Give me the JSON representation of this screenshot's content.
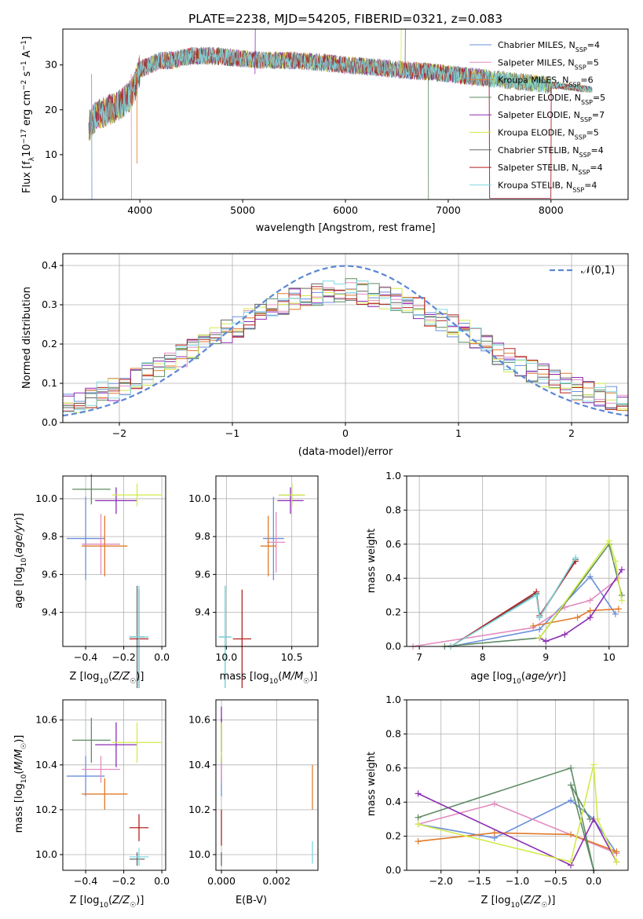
{
  "chart_data": [
    {
      "type": "line",
      "title": "PLATE=2238, MJD=54205, FIBERID=0321, z=0.083",
      "xlabel": "wavelength [Angstrom, rest frame]",
      "ylabel": "Flux [f_λ 10^-17 erg cm^-2 s^-1 A^-1]",
      "xlim": [
        3250,
        8750
      ],
      "ylim": [
        0,
        38
      ],
      "xticks": [
        "4000",
        "5000",
        "6000",
        "7000",
        "8000"
      ],
      "yticks": [
        "0",
        "10",
        "20",
        "30"
      ],
      "grid": false,
      "legend_position": "top-right",
      "continuum": {
        "x": [
          3500,
          3550,
          3600,
          3700,
          3800,
          3900,
          3950,
          4000,
          4100,
          4200,
          4300,
          4500,
          4700,
          5000,
          5200,
          5500,
          5800,
          6000,
          6300,
          6500,
          6800,
          7000,
          7200,
          7400,
          7600,
          7800,
          8000,
          8200,
          8400
        ],
        "y": [
          16,
          18,
          19,
          20,
          21,
          23,
          25,
          29,
          30,
          31,
          31,
          32,
          32,
          31.5,
          31,
          31,
          30.5,
          30,
          29.5,
          29,
          28.5,
          28,
          27.5,
          27,
          26.5,
          26,
          25.5,
          25,
          24.5
        ]
      },
      "series": [
        {
          "name": "Chabrier MILES, N_SSP=4",
          "color": "#6b8fdb"
        },
        {
          "name": "Salpeter MILES, N_SSP=5",
          "color": "#e38cbf"
        },
        {
          "name": "Kroupa MILES, N_SSP=6",
          "color": "#e07b2a"
        },
        {
          "name": "Chabrier ELODIE, N_SSP=5",
          "color": "#5e8c63"
        },
        {
          "name": "Salpeter ELODIE, N_SSP=7",
          "color": "#8c2cb3"
        },
        {
          "name": "Kroupa ELODIE, N_SSP=5",
          "color": "#d3ea4a"
        },
        {
          "name": "Chabrier STELIB, N_SSP=4",
          "color": "#666666"
        },
        {
          "name": "Salpeter STELIB, N_SSP=4",
          "color": "#b22222"
        },
        {
          "name": "Kroupa STELIB, N_SSP=4",
          "color": "#7fd8e0"
        }
      ]
    },
    {
      "type": "histogram",
      "xlabel": "(data-model)/error",
      "ylabel": "Normed distribution",
      "xlim": [
        -2.5,
        2.5
      ],
      "ylim": [
        0,
        0.43
      ],
      "xticks": [
        "−2",
        "−1",
        "0",
        "1",
        "2"
      ],
      "yticks": [
        "0.0",
        "0.1",
        "0.2",
        "0.3",
        "0.4"
      ],
      "grid": true,
      "legend_position": "top-right",
      "reference_curve": {
        "name": "𝒩(0,1)",
        "style": "dashed",
        "color": "#5b87d6"
      },
      "bin_width": 0.1,
      "profile": {
        "x": [
          -2.5,
          -2.0,
          -1.5,
          -1.0,
          -0.5,
          0.0,
          0.5,
          1.0,
          1.5,
          2.0,
          2.5
        ],
        "y": [
          0.04,
          0.09,
          0.16,
          0.24,
          0.31,
          0.34,
          0.31,
          0.24,
          0.15,
          0.09,
          0.05
        ]
      }
    },
    {
      "type": "scatter",
      "name": "age vs metallicity",
      "xlabel": "Z [log10(Z/Z☉)]",
      "ylabel": "age [log10(age/yr)]",
      "xlim": [
        -0.52,
        0.02
      ],
      "ylim": [
        9.22,
        10.12
      ],
      "xticks": [
        "−0.4",
        "−0.2",
        "0.0"
      ],
      "yticks": [
        "9.4",
        "9.6",
        "9.8",
        "10.0"
      ],
      "grid": true,
      "points": [
        {
          "x": -0.4,
          "y": 9.79,
          "xerr": 0.1,
          "yerr": 0.22,
          "color": "#6b8fdb"
        },
        {
          "x": -0.32,
          "y": 9.76,
          "xerr": 0.1,
          "yerr": 0.16,
          "color": "#e38cbf"
        },
        {
          "x": -0.3,
          "y": 9.75,
          "xerr": 0.12,
          "yerr": 0.16,
          "color": "#e07b2a"
        },
        {
          "x": -0.37,
          "y": 10.05,
          "xerr": 0.1,
          "yerr": 0.08,
          "color": "#5e8c63"
        },
        {
          "x": -0.24,
          "y": 9.99,
          "xerr": 0.11,
          "yerr": 0.07,
          "color": "#8c2cb3"
        },
        {
          "x": -0.13,
          "y": 10.02,
          "xerr": 0.13,
          "yerr": 0.06,
          "color": "#d3ea4a"
        },
        {
          "x": -0.13,
          "y": 9.27,
          "xerr": 0.04,
          "yerr": 0.27,
          "color": "#666666"
        },
        {
          "x": -0.12,
          "y": 9.26,
          "xerr": 0.05,
          "yerr": 0.26,
          "color": "#b22222"
        },
        {
          "x": -0.12,
          "y": 9.27,
          "xerr": 0.05,
          "yerr": 0.27,
          "color": "#7fd8e0"
        }
      ]
    },
    {
      "type": "scatter",
      "name": "age vs mass",
      "xlabel": "mass [log10(M/M☉)]",
      "ylabel": "",
      "xlim": [
        9.92,
        10.7
      ],
      "ylim": [
        9.22,
        10.12
      ],
      "xticks": [
        "10.0",
        "10.5"
      ],
      "yticks": [
        "9.4",
        "9.6",
        "9.8",
        "10.0"
      ],
      "grid": true,
      "points": [
        {
          "x": 10.36,
          "y": 9.79,
          "xerr": 0.08,
          "yerr": 0.22,
          "color": "#6b8fdb"
        },
        {
          "x": 10.38,
          "y": 9.77,
          "xerr": 0.07,
          "yerr": 0.16,
          "color": "#e38cbf"
        },
        {
          "x": 10.32,
          "y": 9.75,
          "xerr": 0.06,
          "yerr": 0.16,
          "color": "#e07b2a"
        },
        {
          "x": 10.5,
          "y": 10.02,
          "xerr": 0.1,
          "yerr": 0.06,
          "color": "#5e8c63"
        },
        {
          "x": 10.49,
          "y": 9.99,
          "xerr": 0.1,
          "yerr": 0.07,
          "color": "#8c2cb3"
        },
        {
          "x": 10.5,
          "y": 10.02,
          "xerr": 0.1,
          "yerr": 0.06,
          "color": "#d3ea4a"
        },
        {
          "x": 9.99,
          "y": 9.27,
          "xerr": 0.04,
          "yerr": 0.27,
          "color": "#666666"
        },
        {
          "x": 10.12,
          "y": 9.26,
          "xerr": 0.07,
          "yerr": 0.26,
          "color": "#b22222"
        },
        {
          "x": 9.99,
          "y": 9.27,
          "xerr": 0.05,
          "yerr": 0.27,
          "color": "#7fd8e0"
        }
      ]
    },
    {
      "type": "line",
      "name": "mass weight vs age",
      "xlabel": "age [log10(age/yr)]",
      "ylabel": "mass weight",
      "xlim": [
        6.8,
        10.3
      ],
      "ylim": [
        0,
        1
      ],
      "xticks": [
        "7",
        "8",
        "9",
        "10"
      ],
      "yticks": [
        "0.0",
        "0.2",
        "0.4",
        "0.6",
        "0.8",
        "1.0"
      ],
      "grid": true,
      "series": [
        {
          "color": "#6b8fdb",
          "x": [
            7.5,
            8.9,
            9.7,
            10.1
          ],
          "y": [
            0.0,
            0.1,
            0.41,
            0.19
          ]
        },
        {
          "color": "#e38cbf",
          "x": [
            6.9,
            8.8,
            9.3,
            9.7,
            10.15
          ],
          "y": [
            0.0,
            0.11,
            0.23,
            0.27,
            0.4
          ]
        },
        {
          "color": "#e07b2a",
          "x": [
            8.8,
            9.5,
            9.7,
            10.15
          ],
          "y": [
            0.12,
            0.17,
            0.21,
            0.22
          ]
        },
        {
          "color": "#5e8c63",
          "x": [
            7.4,
            8.9,
            10.0,
            10.2
          ],
          "y": [
            0.0,
            0.05,
            0.6,
            0.3
          ]
        },
        {
          "color": "#8c2cb3",
          "x": [
            8.9,
            9.0,
            9.3,
            9.7,
            10.2
          ],
          "y": [
            0.05,
            0.03,
            0.07,
            0.17,
            0.45
          ]
        },
        {
          "color": "#d3ea4a",
          "x": [
            8.9,
            10.0,
            10.1,
            10.2
          ],
          "y": [
            0.05,
            0.62,
            0.5,
            0.27
          ]
        },
        {
          "color": "#666666",
          "x": [
            7.5,
            8.85,
            8.9,
            9.47
          ],
          "y": [
            0.0,
            0.31,
            0.17,
            0.51
          ]
        },
        {
          "color": "#b22222",
          "x": [
            7.5,
            8.85,
            8.9,
            9.47
          ],
          "y": [
            0.0,
            0.32,
            0.18,
            0.5
          ]
        },
        {
          "color": "#7fd8e0",
          "x": [
            7.5,
            8.85,
            8.9,
            9.47
          ],
          "y": [
            0.0,
            0.3,
            0.17,
            0.52
          ]
        }
      ]
    },
    {
      "type": "scatter",
      "name": "mass vs metallicity",
      "xlabel": "Z [log10(Z/Z☉)]",
      "ylabel": "mass [log10(M/M☉)]",
      "xlim": [
        -0.52,
        0.02
      ],
      "ylim": [
        9.93,
        10.69
      ],
      "xticks": [
        "−0.4",
        "−0.2",
        "0.0"
      ],
      "yticks": [
        "10.0",
        "10.2",
        "10.4",
        "10.6"
      ],
      "grid": true,
      "points": [
        {
          "x": -0.4,
          "y": 10.35,
          "xerr": 0.1,
          "yerr": 0.09,
          "color": "#6b8fdb"
        },
        {
          "x": -0.32,
          "y": 10.38,
          "xerr": 0.1,
          "yerr": 0.06,
          "color": "#e38cbf"
        },
        {
          "x": -0.3,
          "y": 10.27,
          "xerr": 0.12,
          "yerr": 0.07,
          "color": "#e07b2a"
        },
        {
          "x": -0.37,
          "y": 10.51,
          "xerr": 0.1,
          "yerr": 0.1,
          "color": "#5e8c63"
        },
        {
          "x": -0.24,
          "y": 10.49,
          "xerr": 0.11,
          "yerr": 0.1,
          "color": "#8c2cb3"
        },
        {
          "x": -0.13,
          "y": 10.5,
          "xerr": 0.13,
          "yerr": 0.09,
          "color": "#d3ea4a"
        },
        {
          "x": -0.13,
          "y": 9.98,
          "xerr": 0.04,
          "yerr": 0.03,
          "color": "#666666"
        },
        {
          "x": -0.12,
          "y": 10.12,
          "xerr": 0.05,
          "yerr": 0.06,
          "color": "#b22222"
        },
        {
          "x": -0.12,
          "y": 9.99,
          "xerr": 0.05,
          "yerr": 0.04,
          "color": "#7fd8e0"
        }
      ]
    },
    {
      "type": "scatter",
      "name": "mass vs extinction",
      "xlabel": "E(B-V)",
      "ylabel": "",
      "xlim": [
        -0.0002,
        0.0035
      ],
      "ylim": [
        9.93,
        10.69
      ],
      "xticks": [
        "0.000",
        "0.002"
      ],
      "yticks": [
        "10.0",
        "10.2",
        "10.4",
        "10.6"
      ],
      "grid": true,
      "points": [
        {
          "x": 0.0,
          "y": 10.35,
          "yerr": 0.09,
          "color": "#6b8fdb"
        },
        {
          "x": 0.0,
          "y": 10.38,
          "yerr": 0.06,
          "color": "#e38cbf"
        },
        {
          "x": 0.0033,
          "y": 10.3,
          "yerr": 0.1,
          "color": "#e07b2a"
        },
        {
          "x": 0.0,
          "y": 10.51,
          "yerr": 0.1,
          "color": "#5e8c63"
        },
        {
          "x": 0.0,
          "y": 10.56,
          "yerr": 0.1,
          "color": "#8c2cb3"
        },
        {
          "x": 0.0,
          "y": 10.5,
          "yerr": 0.09,
          "color": "#d3ea4a"
        },
        {
          "x": 0.0,
          "y": 9.98,
          "yerr": 0.03,
          "color": "#666666"
        },
        {
          "x": 0.0,
          "y": 10.12,
          "yerr": 0.08,
          "color": "#b22222"
        },
        {
          "x": 0.0033,
          "y": 10.01,
          "yerr": 0.05,
          "color": "#7fd8e0"
        }
      ]
    },
    {
      "type": "line",
      "name": "mass weight vs metallicity",
      "xlabel": "Z [log10(Z/Z☉)]",
      "ylabel": "mass weight",
      "xlim": [
        -2.45,
        0.45
      ],
      "ylim": [
        0,
        1
      ],
      "xticks": [
        "−2.0",
        "−1.5",
        "−1.0",
        "−0.5",
        "0.0"
      ],
      "yticks": [
        "0.0",
        "0.2",
        "0.4",
        "0.6",
        "0.8",
        "1.0"
      ],
      "grid": true,
      "series": [
        {
          "color": "#6b8fdb",
          "x": [
            -2.3,
            -1.3,
            -0.3,
            0.0,
            0.3
          ],
          "y": [
            0.27,
            0.19,
            0.41,
            0.3,
            0.1
          ]
        },
        {
          "color": "#e38cbf",
          "x": [
            -2.3,
            -1.3,
            0.3
          ],
          "y": [
            0.27,
            0.39,
            0.1
          ]
        },
        {
          "color": "#e07b2a",
          "x": [
            -2.3,
            -1.3,
            -0.3,
            0.3
          ],
          "y": [
            0.17,
            0.22,
            0.21,
            0.11
          ]
        },
        {
          "color": "#5e8c63",
          "x": [
            -2.3,
            -0.3,
            0.0,
            -0.3,
            -0.05
          ],
          "y": [
            0.31,
            0.6,
            0.0,
            0.5,
            0.3
          ]
        },
        {
          "color": "#8c2cb3",
          "x": [
            -2.3,
            -0.3,
            0.0,
            0.3
          ],
          "y": [
            0.45,
            0.03,
            0.3,
            0.05
          ]
        },
        {
          "color": "#d3ea4a",
          "x": [
            -2.3,
            -0.3,
            0.0,
            0.05,
            0.3
          ],
          "y": [
            0.27,
            0.05,
            0.62,
            0.3,
            0.05
          ]
        }
      ]
    }
  ]
}
